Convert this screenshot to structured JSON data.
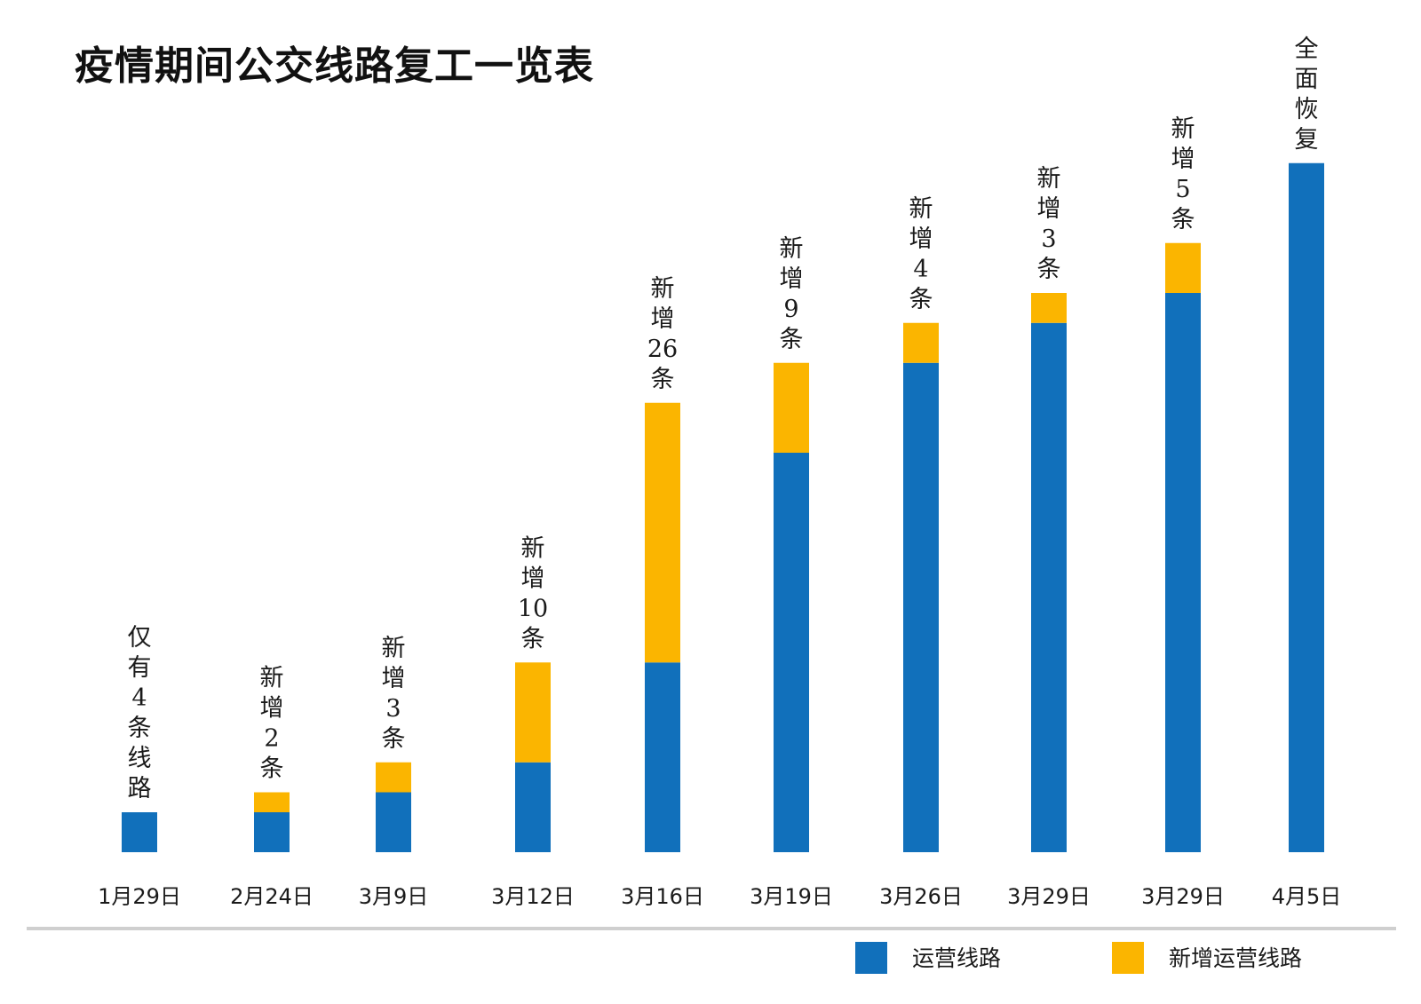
{
  "chart_data": {
    "type": "bar",
    "stacked": true,
    "title": "疫情期间公交线路复工一览表",
    "xlabel": "",
    "ylabel": "",
    "ylim": [
      0,
      79
    ],
    "grid": false,
    "legend": "bottom-right",
    "categories": [
      "1月29日",
      "2月24日",
      "3月9日",
      "3月12日",
      "3月16日",
      "3月19日",
      "3月26日",
      "3月29日",
      "3月29日",
      "4月5日"
    ],
    "series": [
      {
        "name": "运营线路",
        "color": "#1170bb",
        "values": [
          4,
          4,
          6,
          9,
          19,
          40,
          49,
          53,
          56,
          69
        ]
      },
      {
        "name": "新增运营线路",
        "color": "#fbb500",
        "values": [
          0,
          2,
          3,
          10,
          26,
          9,
          4,
          3,
          5,
          0
        ]
      }
    ],
    "annotations": [
      "仅有4条线路",
      "新增2条",
      "新增3条",
      "新增10条",
      "新增26条",
      "新增9条",
      "新增4条",
      "新增3条",
      "新增5条",
      "全面恢复"
    ]
  }
}
